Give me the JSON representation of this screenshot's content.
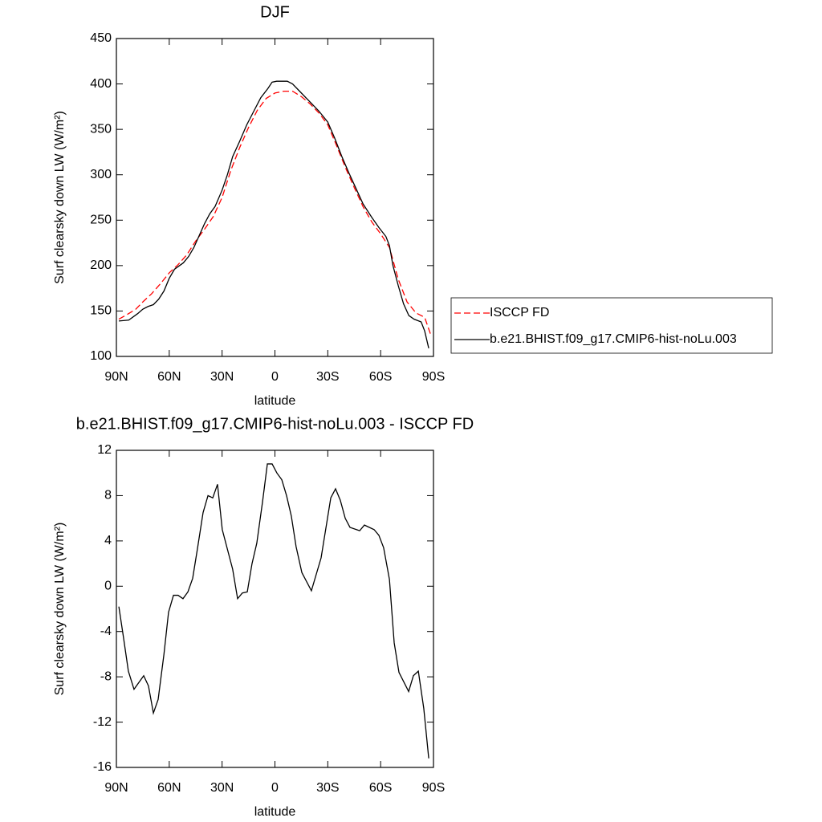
{
  "chart_data": [
    {
      "type": "line",
      "title": "DJF",
      "xlabel": "latitude",
      "ylabel": "Surf clearsky down LW (W/m²)",
      "xlim": [
        90,
        -90
      ],
      "xticks": [
        {
          "value": 90,
          "label": "90N"
        },
        {
          "value": 60,
          "label": "60N"
        },
        {
          "value": 30,
          "label": "30N"
        },
        0,
        {
          "value": -30,
          "label": "30S"
        },
        {
          "value": -60,
          "label": "60S"
        },
        {
          "value": -90,
          "label": "90S"
        }
      ],
      "ylim": [
        100,
        450
      ],
      "yticks": [
        100,
        150,
        200,
        250,
        300,
        350,
        400,
        450
      ],
      "legend": "right",
      "series": [
        {
          "name": "ISCCP FD",
          "color": "#ff0000",
          "dashed": true,
          "x": [
            88.6,
            84,
            79,
            75,
            70,
            65,
            60,
            55,
            50,
            45,
            40,
            35,
            30,
            25,
            20,
            15,
            10,
            5,
            0,
            -5,
            -10,
            -15,
            -20,
            -25,
            -30,
            -35,
            -40,
            -45,
            -50,
            -55,
            -60,
            -65,
            -70,
            -75,
            -80,
            -85,
            -88.6
          ],
          "values": [
            141,
            146,
            152,
            160,
            169,
            180,
            192,
            201,
            212,
            227,
            240,
            254,
            275,
            305,
            330,
            352,
            371,
            384,
            390,
            392,
            392,
            386,
            378,
            368,
            355,
            332,
            308,
            286,
            265,
            248,
            235,
            220,
            185,
            160,
            148,
            143,
            123
          ]
        },
        {
          "name": "b.e21.BHIST.f09_g17.CMIP6-hist-noLu.003",
          "color": "#000000",
          "dashed": false,
          "x": [
            88.6,
            83,
            78,
            75,
            72,
            69,
            66,
            63,
            60,
            57,
            52,
            49,
            46,
            43,
            40,
            37,
            34,
            30,
            27,
            24,
            20,
            16,
            12,
            8,
            4,
            1.6,
            -1,
            -4,
            -7,
            -10,
            -15,
            -20,
            -25,
            -30,
            -34,
            -38,
            -42,
            -46,
            -50,
            -55,
            -59,
            -63,
            -65,
            -67,
            -70,
            -73,
            -76,
            -79,
            -83,
            -85,
            -87.3
          ],
          "values": [
            139,
            140,
            147,
            152,
            155,
            157,
            163,
            172,
            186,
            196,
            203,
            210,
            220,
            233,
            246,
            257,
            265,
            283,
            300,
            320,
            337,
            355,
            370,
            385,
            395,
            402,
            403,
            403,
            403,
            400,
            390,
            380,
            370,
            358,
            340,
            320,
            302,
            285,
            268,
            253,
            242,
            232,
            222,
            200,
            178,
            158,
            145,
            141,
            138,
            128,
            109
          ]
        }
      ]
    },
    {
      "type": "line",
      "title": "b.e21.BHIST.f09_g17.CMIP6-hist-noLu.003 - ISCCP FD",
      "xlabel": "latitude",
      "ylabel": "Surf clearsky down LW (W/m²)",
      "xlim": [
        90,
        -90
      ],
      "xticks": [
        {
          "value": 90,
          "label": "90N"
        },
        {
          "value": 60,
          "label": "60N"
        },
        {
          "value": 30,
          "label": "30N"
        },
        0,
        {
          "value": -30,
          "label": "30S"
        },
        {
          "value": -60,
          "label": "60S"
        },
        {
          "value": -90,
          "label": "90S"
        }
      ],
      "ylim": [
        -16,
        12
      ],
      "yticks": [
        -16,
        -12,
        -8,
        -4,
        0,
        4,
        8,
        12
      ],
      "color": "#000000",
      "x": [
        88.6,
        86,
        83.2,
        80,
        74.5,
        71.8,
        69,
        66.3,
        63,
        60.4,
        57.6,
        55,
        52.2,
        49.4,
        46.7,
        44,
        40.8,
        38,
        35.3,
        32.6,
        29.9,
        24,
        21.2,
        18.5,
        15.7,
        13,
        10.3,
        7,
        4.3,
        1.6,
        -1.1,
        -3.9,
        -6.6,
        -9.3,
        -12,
        -15.3,
        -20.7,
        -26.2,
        -29,
        -31.7,
        -34.4,
        -37.1,
        -39.9,
        -42.6,
        -48.1,
        -50.8,
        -56.3,
        -59,
        -61.7,
        -65,
        -67.7,
        -70.4,
        -75.9,
        -78.6,
        -81.4,
        -84.5,
        -87.3
      ],
      "values": [
        -1.8,
        -4.5,
        -7.5,
        -9.1,
        -7.9,
        -8.8,
        -11.2,
        -10,
        -6,
        -2.3,
        -0.8,
        -0.8,
        -1.1,
        -0.5,
        0.7,
        3.3,
        6.5,
        8,
        7.8,
        9,
        5,
        1.5,
        -1.1,
        -0.6,
        -0.5,
        2,
        3.8,
        7.5,
        10.8,
        10.8,
        10,
        9.4,
        8,
        6.2,
        3.5,
        1.2,
        -0.4,
        2.5,
        5.2,
        7.8,
        8.6,
        7.6,
        6,
        5.2,
        4.9,
        5.4,
        5,
        4.5,
        3.4,
        0.6,
        -5,
        -7.6,
        -9.3,
        -7.9,
        -7.5,
        -10.8,
        -15.2
      ]
    }
  ]
}
